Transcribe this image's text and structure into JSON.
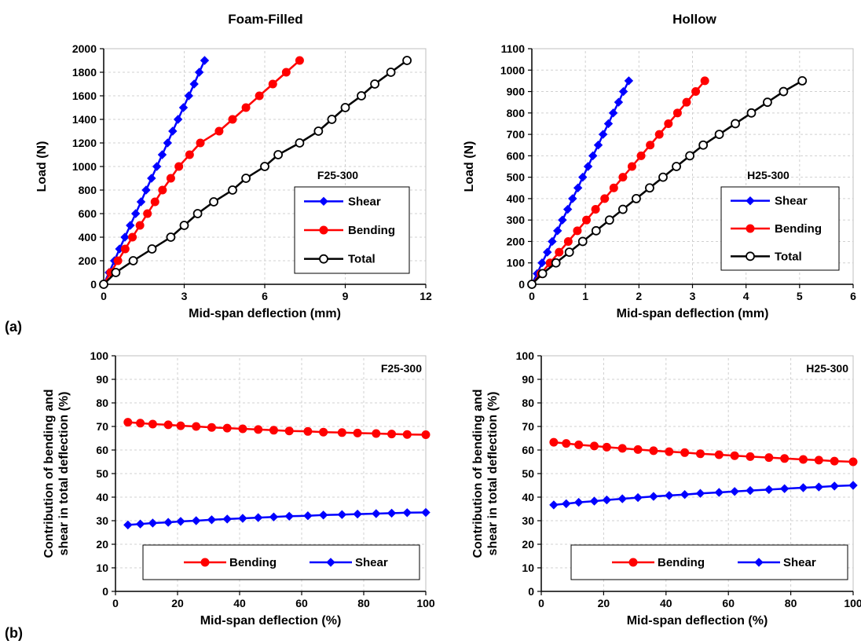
{
  "figure": {
    "label_a": "(a)",
    "label_b": "(b)",
    "col_titles": [
      "Foam-Filled",
      "Hollow"
    ]
  },
  "colors": {
    "shear": "#0000ff",
    "bending": "#ff0000",
    "total": "#000000"
  },
  "chart_data": [
    {
      "id": "a-foam",
      "type": "line",
      "title": "Foam-Filled",
      "tag": "F25-300",
      "xlabel": "Mid-span deflection (mm)",
      "ylabel": "Load (N)",
      "xlim": [
        0,
        12
      ],
      "ylim": [
        0,
        2000
      ],
      "xticks": [
        0,
        3,
        6,
        9,
        12
      ],
      "yticks": [
        0,
        200,
        400,
        600,
        800,
        1000,
        1200,
        1400,
        1600,
        1800,
        2000
      ],
      "legend": "inside-right",
      "series": [
        {
          "name": "Shear",
          "color": "#0000ff",
          "marker": "diamond",
          "x": [
            0,
            0.2,
            0.4,
            0.59,
            0.79,
            0.99,
            1.19,
            1.39,
            1.58,
            1.78,
            1.98,
            2.18,
            2.38,
            2.57,
            2.77,
            2.97,
            3.17,
            3.37,
            3.56,
            3.76
          ],
          "y": [
            0,
            100,
            200,
            300,
            400,
            500,
            600,
            700,
            800,
            900,
            1000,
            1100,
            1200,
            1300,
            1400,
            1500,
            1600,
            1700,
            1800,
            1900
          ]
        },
        {
          "name": "Bending",
          "color": "#ff0000",
          "marker": "circle",
          "x": [
            0,
            0.26,
            0.53,
            0.8,
            1.07,
            1.35,
            1.63,
            1.91,
            2.19,
            2.5,
            2.8,
            3.2,
            3.6,
            4.3,
            4.8,
            5.3,
            5.8,
            6.3,
            6.8,
            7.3
          ],
          "y": [
            0,
            100,
            200,
            300,
            400,
            500,
            600,
            700,
            800,
            900,
            1000,
            1100,
            1200,
            1300,
            1400,
            1500,
            1600,
            1700,
            1800,
            1900
          ]
        },
        {
          "name": "Total",
          "color": "#000000",
          "marker": "circle-open",
          "x": [
            0,
            0.45,
            1.1,
            1.8,
            2.5,
            3.0,
            3.5,
            4.1,
            4.8,
            5.3,
            6.0,
            6.5,
            7.3,
            8.0,
            8.5,
            9.0,
            9.6,
            10.1,
            10.7,
            11.3
          ],
          "y": [
            0,
            100,
            200,
            300,
            400,
            500,
            600,
            700,
            800,
            900,
            1000,
            1100,
            1200,
            1300,
            1400,
            1500,
            1600,
            1700,
            1800,
            1900
          ]
        }
      ]
    },
    {
      "id": "a-hollow",
      "type": "line",
      "title": "Hollow",
      "tag": "H25-300",
      "xlabel": "Mid-span deflection (mm)",
      "ylabel": "Load (N)",
      "xlim": [
        0,
        6
      ],
      "ylim": [
        0,
        1100
      ],
      "xticks": [
        0,
        1,
        2,
        3,
        4,
        5,
        6
      ],
      "yticks": [
        0,
        100,
        200,
        300,
        400,
        500,
        600,
        700,
        800,
        900,
        1000,
        1100
      ],
      "legend": "inside-right",
      "series": [
        {
          "name": "Shear",
          "color": "#0000ff",
          "marker": "diamond",
          "x": [
            0,
            0.1,
            0.19,
            0.29,
            0.38,
            0.48,
            0.57,
            0.67,
            0.76,
            0.86,
            0.95,
            1.05,
            1.14,
            1.24,
            1.33,
            1.43,
            1.52,
            1.62,
            1.71,
            1.81
          ],
          "y": [
            0,
            50,
            100,
            150,
            200,
            250,
            300,
            350,
            400,
            450,
            500,
            550,
            600,
            650,
            700,
            750,
            800,
            850,
            900,
            950
          ]
        },
        {
          "name": "Bending",
          "color": "#ff0000",
          "marker": "circle",
          "x": [
            0,
            0.17,
            0.34,
            0.51,
            0.68,
            0.85,
            1.02,
            1.19,
            1.36,
            1.53,
            1.7,
            1.87,
            2.04,
            2.21,
            2.38,
            2.55,
            2.72,
            2.89,
            3.06,
            3.23
          ],
          "y": [
            0,
            50,
            100,
            150,
            200,
            250,
            300,
            350,
            400,
            450,
            500,
            550,
            600,
            650,
            700,
            750,
            800,
            850,
            900,
            950
          ]
        },
        {
          "name": "Total",
          "color": "#000000",
          "marker": "circle-open",
          "x": [
            0,
            0.2,
            0.45,
            0.7,
            0.95,
            1.2,
            1.45,
            1.7,
            1.95,
            2.2,
            2.45,
            2.7,
            2.95,
            3.2,
            3.5,
            3.8,
            4.1,
            4.4,
            4.7,
            5.05
          ],
          "y": [
            0,
            50,
            100,
            150,
            200,
            250,
            300,
            350,
            400,
            450,
            500,
            550,
            600,
            650,
            700,
            750,
            800,
            850,
            900,
            950
          ]
        }
      ]
    },
    {
      "id": "b-foam",
      "type": "line",
      "tag": "F25-300",
      "xlabel": "Mid-span deflection (%)",
      "ylabel": [
        "Contribution of bending and",
        "shear in total deflection (%)"
      ],
      "xlim": [
        0,
        100
      ],
      "ylim": [
        0,
        100
      ],
      "xticks": [
        0,
        20,
        40,
        60,
        80,
        100
      ],
      "yticks": [
        0,
        10,
        20,
        30,
        40,
        50,
        60,
        70,
        80,
        90,
        100
      ],
      "legend": "bottom",
      "series": [
        {
          "name": "Bending",
          "color": "#ff0000",
          "marker": "circle",
          "x": [
            4,
            8,
            12,
            17,
            21,
            26,
            31,
            36,
            41,
            46,
            51,
            56,
            62,
            67,
            73,
            78,
            84,
            89,
            94,
            100
          ],
          "y": [
            71.8,
            71.4,
            71.0,
            70.7,
            70.3,
            70.0,
            69.6,
            69.3,
            69.0,
            68.7,
            68.4,
            68.1,
            67.9,
            67.6,
            67.4,
            67.2,
            67.0,
            66.8,
            66.6,
            66.5
          ]
        },
        {
          "name": "Shear",
          "color": "#0000ff",
          "marker": "diamond",
          "x": [
            4,
            8,
            12,
            17,
            21,
            26,
            31,
            36,
            41,
            46,
            51,
            56,
            62,
            67,
            73,
            78,
            84,
            89,
            94,
            100
          ],
          "y": [
            28.2,
            28.6,
            29.0,
            29.3,
            29.7,
            30.0,
            30.4,
            30.7,
            31.0,
            31.3,
            31.6,
            31.9,
            32.1,
            32.4,
            32.6,
            32.8,
            33.0,
            33.2,
            33.4,
            33.5
          ]
        }
      ]
    },
    {
      "id": "b-hollow",
      "type": "line",
      "tag": "H25-300",
      "xlabel": "Mid-span deflection (%)",
      "ylabel": [
        "Contribution of bending and",
        "shear in total deflection (%)"
      ],
      "xlim": [
        0,
        100
      ],
      "ylim": [
        0,
        100
      ],
      "xticks": [
        0,
        20,
        40,
        60,
        80,
        100
      ],
      "yticks": [
        0,
        10,
        20,
        30,
        40,
        50,
        60,
        70,
        80,
        90,
        100
      ],
      "legend": "bottom",
      "series": [
        {
          "name": "Bending",
          "color": "#ff0000",
          "marker": "circle",
          "x": [
            4,
            8,
            12,
            17,
            21,
            26,
            31,
            36,
            41,
            46,
            51,
            57,
            62,
            67,
            73,
            78,
            84,
            89,
            94,
            100
          ],
          "y": [
            63.3,
            62.8,
            62.2,
            61.7,
            61.2,
            60.7,
            60.2,
            59.7,
            59.3,
            58.9,
            58.4,
            58.0,
            57.6,
            57.2,
            56.8,
            56.4,
            56.0,
            55.7,
            55.3,
            55.0
          ]
        },
        {
          "name": "Shear",
          "color": "#0000ff",
          "marker": "diamond",
          "x": [
            4,
            8,
            12,
            17,
            21,
            26,
            31,
            36,
            41,
            46,
            51,
            57,
            62,
            67,
            73,
            78,
            84,
            89,
            94,
            100
          ],
          "y": [
            36.7,
            37.2,
            37.8,
            38.3,
            38.8,
            39.3,
            39.8,
            40.3,
            40.7,
            41.1,
            41.6,
            42.0,
            42.4,
            42.8,
            43.2,
            43.6,
            44.0,
            44.3,
            44.7,
            45.0
          ]
        }
      ]
    }
  ]
}
